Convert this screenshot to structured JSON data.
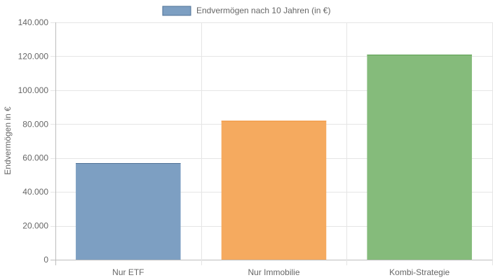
{
  "chart_data": {
    "type": "bar",
    "categories": [
      "Nur ETF",
      "Nur Immobilie",
      "Kombi-Strategie"
    ],
    "series": [
      {
        "name": "Endvermögen nach 10 Jahren (in €)",
        "values": [
          57000,
          82000,
          121000
        ],
        "colors": [
          "#7d9fc2",
          "#f5aa5f",
          "#85bb7b"
        ],
        "border_colors": [
          "#4e7096",
          "#f08c2c",
          "#5a9e4e"
        ]
      }
    ],
    "title": "",
    "xlabel": "",
    "ylabel": "Endvermögen in €",
    "ylim": [
      0,
      140000
    ],
    "yticks": [
      0,
      20000,
      40000,
      60000,
      80000,
      100000,
      120000,
      140000
    ],
    "ytick_labels": [
      "0",
      "20.000",
      "40.000",
      "60.000",
      "80.000",
      "100.000",
      "120.000",
      "140.000"
    ],
    "grid": true,
    "legend": {
      "placement": "top-center"
    },
    "legend_color": "#7d9fc2",
    "legend_border": "#4e7096"
  }
}
